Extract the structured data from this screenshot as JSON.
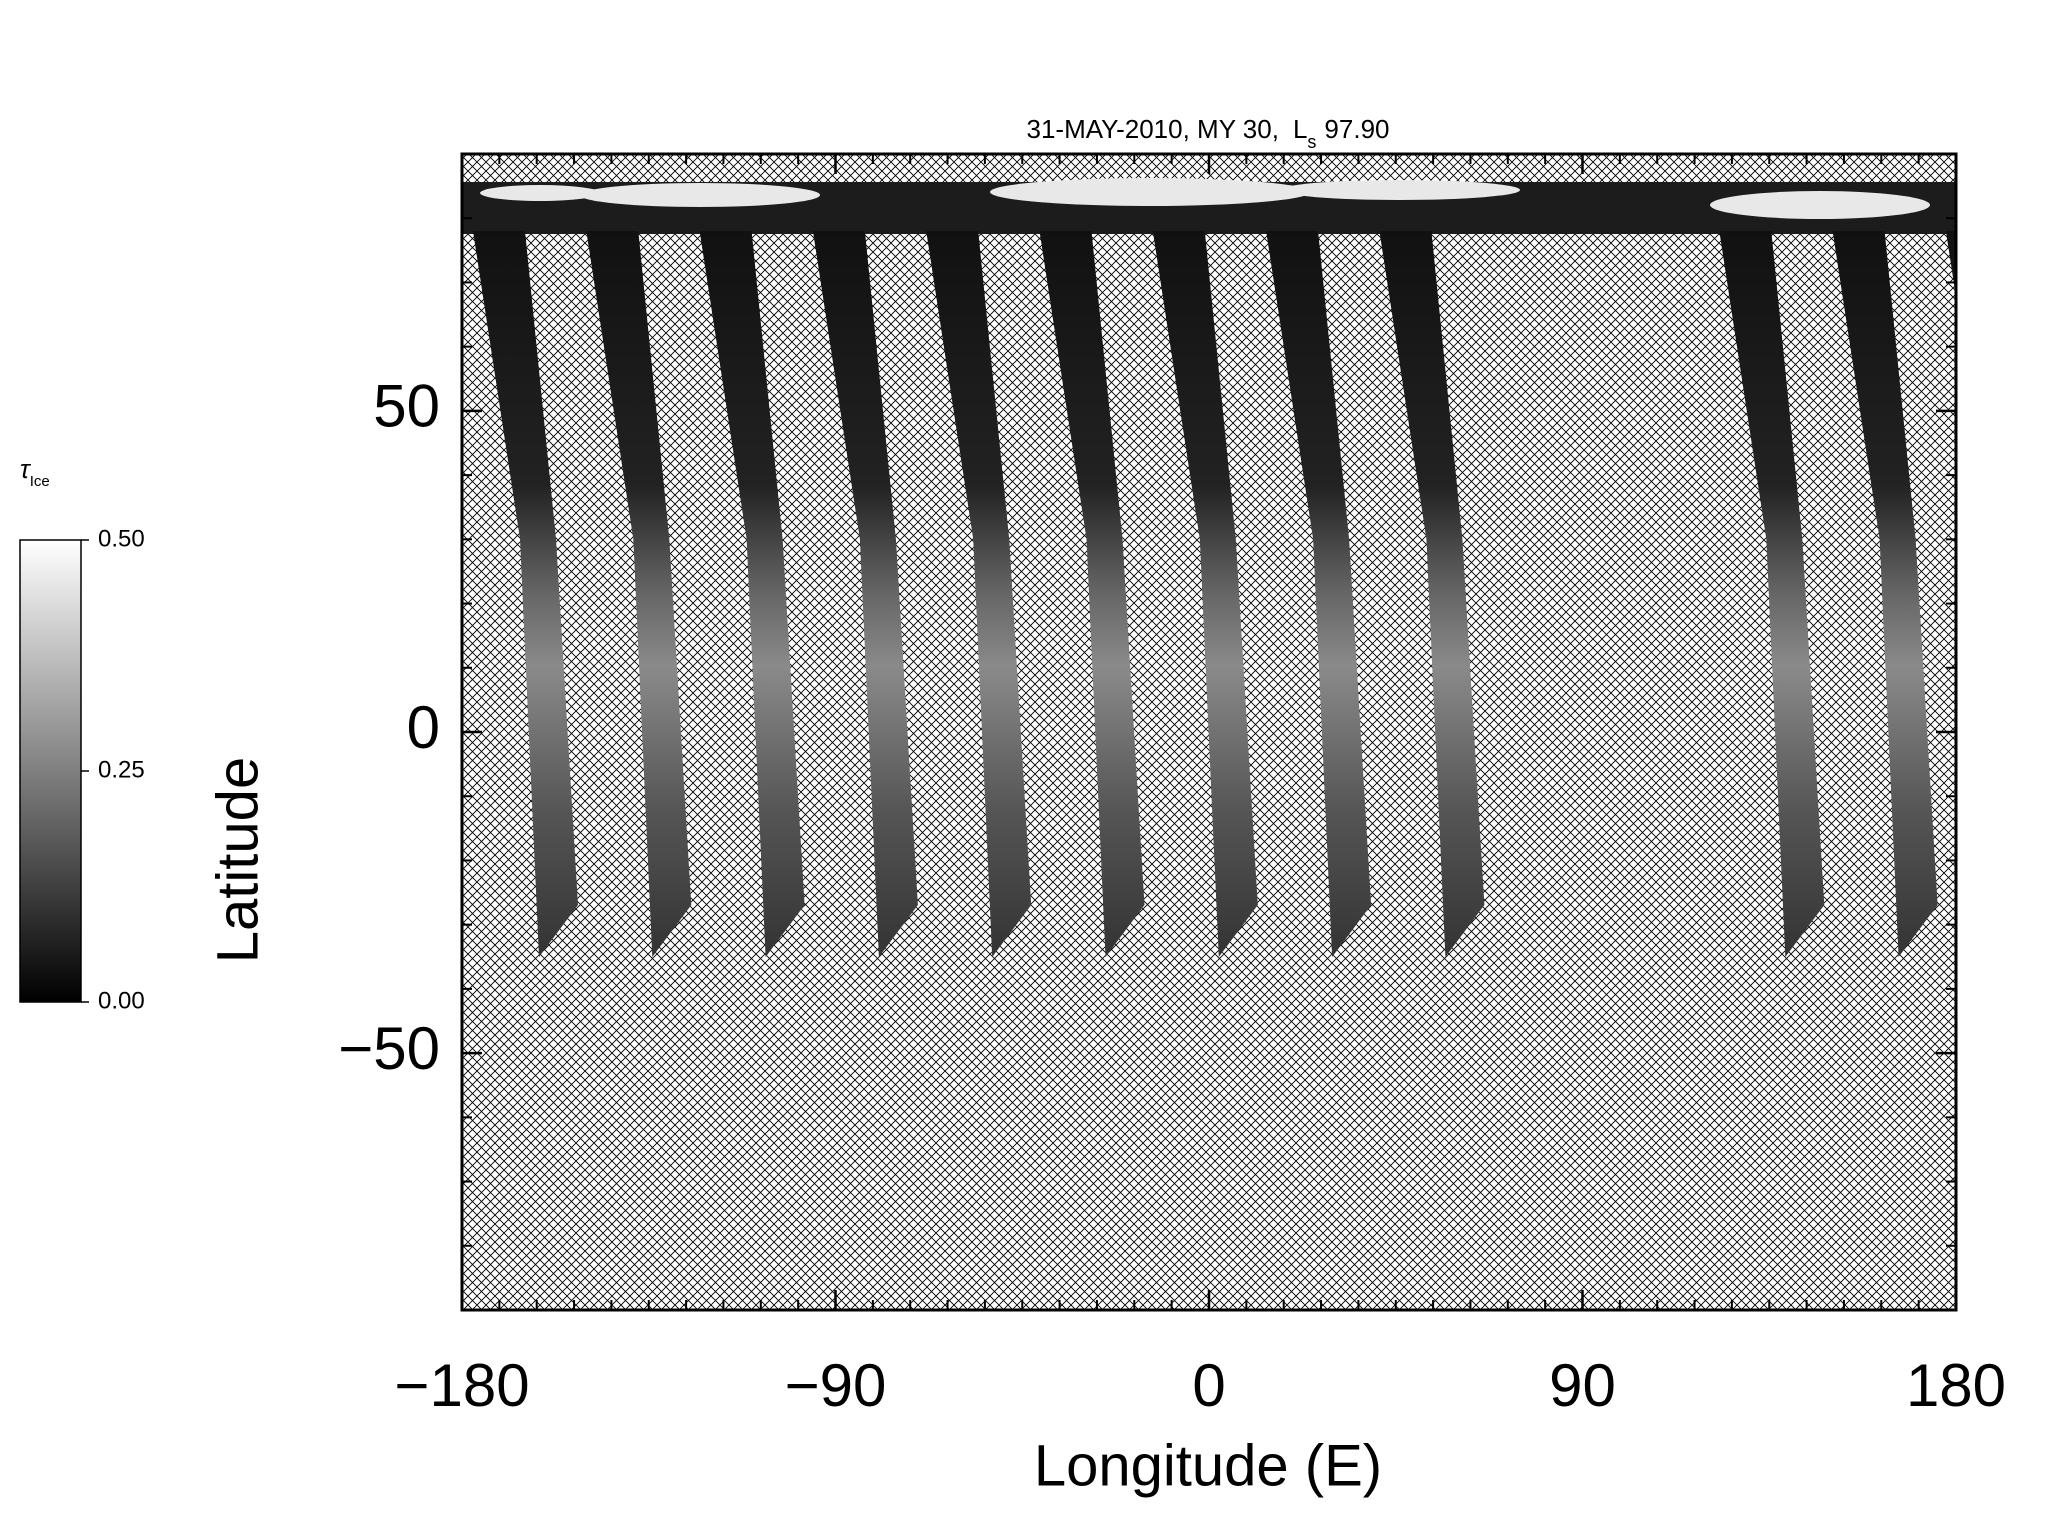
{
  "chart_data": {
    "type": "map",
    "title": "31-MAY-2010, MY 30,",
    "ls_symbol": "L",
    "ls_subscript": "s",
    "ls_value": "97.90",
    "xlabel": "Longitude (E)",
    "ylabel": "Latitude",
    "xlim": [
      -180,
      180
    ],
    "ylim": [
      -90,
      90
    ],
    "xticks": [
      {
        "value": -180,
        "label": "−180"
      },
      {
        "value": -90,
        "label": "−90"
      },
      0,
      90,
      180
    ],
    "yticks": [
      {
        "value": -50,
        "label": "−50"
      },
      0,
      50
    ],
    "xminorticks": [
      -171,
      -162,
      -153,
      -144,
      -135,
      -126,
      -117,
      -108,
      -99,
      -81,
      -72,
      -63,
      -54,
      -45,
      -36,
      -27,
      -18,
      -9,
      9,
      18,
      27,
      36,
      45,
      54,
      63,
      72,
      81,
      99,
      108,
      117,
      126,
      135,
      144,
      153,
      162,
      171
    ],
    "yminorticks": [
      -80,
      -70,
      -60,
      -40,
      -30,
      -20,
      -10,
      10,
      20,
      30,
      40,
      60,
      70,
      80
    ],
    "colorbar": {
      "label": "τ",
      "label_subscript": "Ice",
      "zlim": [
        0,
        0.5
      ],
      "zticks": [
        {
          "value": 0,
          "label": "0.00"
        },
        {
          "value": 0.25,
          "label": "0.25"
        },
        {
          "value": 0.5,
          "label": "0.50"
        }
      ],
      "colors": [
        "#000000",
        "#ffffff"
      ]
    }
  }
}
